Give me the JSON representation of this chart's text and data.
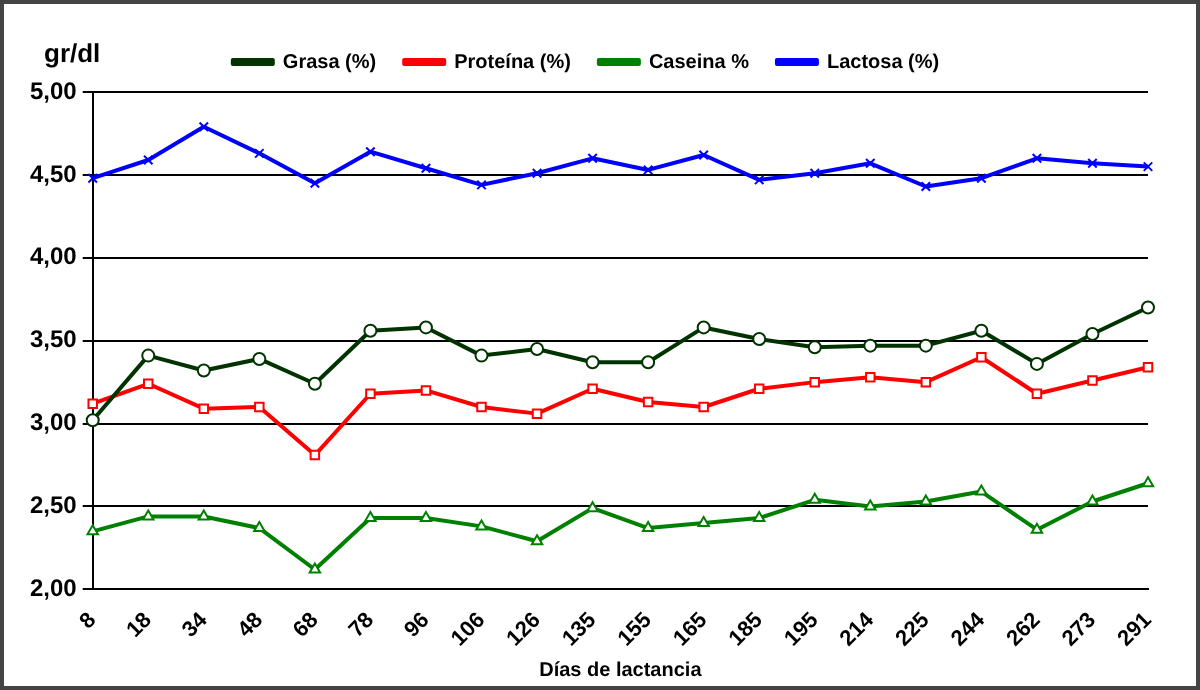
{
  "chart_data": {
    "type": "line",
    "ylabel": "gr/dl",
    "xlabel": "Días de lactancia",
    "categories": [
      "8",
      "18",
      "34",
      "48",
      "68",
      "78",
      "96",
      "106",
      "126",
      "135",
      "155",
      "165",
      "185",
      "195",
      "214",
      "225",
      "244",
      "262",
      "273",
      "291"
    ],
    "series": [
      {
        "name": "Grasa (%)",
        "color": "#003300",
        "marker": "circle",
        "values": [
          3.02,
          3.41,
          3.32,
          3.39,
          3.24,
          3.56,
          3.58,
          3.41,
          3.45,
          3.37,
          3.37,
          3.58,
          3.51,
          3.46,
          3.47,
          3.47,
          3.56,
          3.36,
          3.54,
          3.7
        ]
      },
      {
        "name": "Proteína (%)",
        "color": "#ff0000",
        "marker": "square",
        "values": [
          3.12,
          3.24,
          3.09,
          3.1,
          2.81,
          3.18,
          3.2,
          3.1,
          3.06,
          3.21,
          3.13,
          3.1,
          3.21,
          3.25,
          3.28,
          3.25,
          3.4,
          3.18,
          3.26,
          3.34
        ]
      },
      {
        "name": "Caseina %",
        "color": "#008000",
        "marker": "triangle",
        "values": [
          2.35,
          2.44,
          2.44,
          2.37,
          2.12,
          2.43,
          2.43,
          2.38,
          2.29,
          2.49,
          2.37,
          2.4,
          2.43,
          2.54,
          2.5,
          2.53,
          2.59,
          2.36,
          2.53,
          2.64
        ]
      },
      {
        "name": "Lactosa (%)",
        "color": "#0000ff",
        "marker": "cross",
        "values": [
          4.48,
          4.59,
          4.79,
          4.63,
          4.45,
          4.64,
          4.54,
          4.44,
          4.51,
          4.6,
          4.53,
          4.62,
          4.47,
          4.51,
          4.57,
          4.43,
          4.48,
          4.6,
          4.57,
          4.55
        ]
      }
    ],
    "ylim": [
      2,
      5
    ],
    "yticks": [
      {
        "value": 2,
        "label": "2,00"
      },
      {
        "value": 2.5,
        "label": "2,50"
      },
      {
        "value": 3,
        "label": "3,00"
      },
      {
        "value": 3.5,
        "label": "3,50"
      },
      {
        "value": 4,
        "label": "4,00"
      },
      {
        "value": 4.5,
        "label": "4,50"
      },
      {
        "value": 5,
        "label": "5,00"
      }
    ],
    "grid": "y",
    "legend": "top",
    "line_style": "solid"
  }
}
